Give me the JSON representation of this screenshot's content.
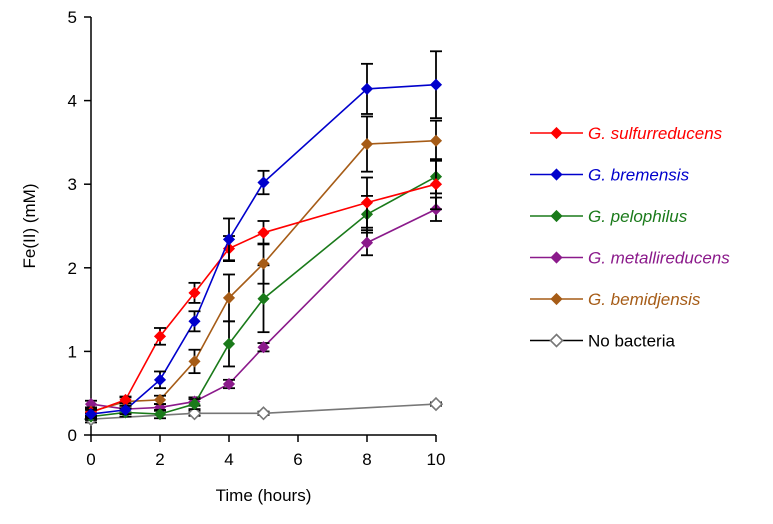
{
  "chart_data": {
    "type": "line",
    "title": "",
    "xlabel": "Time (hours)",
    "ylabel": "Fe(II) (mM)",
    "xlim": [
      0,
      10
    ],
    "ylim": [
      0,
      5
    ],
    "xticks": [
      "0",
      "2",
      "4",
      "6",
      "8",
      "10"
    ],
    "yticks": [
      "0",
      "1",
      "2",
      "3",
      "4",
      "5"
    ],
    "grid": false,
    "legend_position": "right",
    "series": [
      {
        "name": "G. sulfurreducens",
        "color": "#ff0000",
        "marker": "diamond-filled",
        "x": [
          0,
          1,
          2,
          3,
          4,
          5,
          8,
          10
        ],
        "y": [
          0.27,
          0.42,
          1.18,
          1.7,
          2.23,
          2.42,
          2.78,
          3.0
        ],
        "err": [
          0.05,
          0.04,
          0.1,
          0.12,
          0.15,
          0.14,
          0.3,
          0.3
        ]
      },
      {
        "name": "G. bremensis",
        "color": "#0000cc",
        "marker": "diamond-filled",
        "x": [
          0,
          1,
          2,
          3,
          4,
          5,
          8,
          10
        ],
        "y": [
          0.25,
          0.3,
          0.66,
          1.36,
          2.34,
          3.02,
          4.14,
          4.19
        ],
        "err": [
          0.05,
          0.05,
          0.1,
          0.12,
          0.25,
          0.14,
          0.3,
          0.4
        ]
      },
      {
        "name": "G. pelophilus",
        "color": "#1a7a1a",
        "marker": "diamond-filled",
        "x": [
          0,
          1,
          2,
          3,
          4,
          5,
          8,
          10
        ],
        "y": [
          0.22,
          0.27,
          0.25,
          0.37,
          1.09,
          1.63,
          2.64,
          3.09
        ],
        "err": [
          0.04,
          0.05,
          0.05,
          0.06,
          0.27,
          0.4,
          0.22,
          0.2
        ]
      },
      {
        "name": "G. metallireducens",
        "color": "#8b1a8b",
        "marker": "diamond-filled",
        "x": [
          0,
          1,
          2,
          3,
          4,
          5,
          8,
          10
        ],
        "y": [
          0.37,
          0.31,
          0.33,
          0.4,
          0.61,
          1.05,
          2.3,
          2.7
        ],
        "err": [
          0.04,
          0.04,
          0.04,
          0.05,
          0.05,
          0.05,
          0.15,
          0.14
        ]
      },
      {
        "name": "G. bemidjensis",
        "color": "#a65c17",
        "marker": "diamond-filled",
        "x": [
          0,
          1,
          2,
          3,
          4,
          5,
          8,
          10
        ],
        "y": [
          0.28,
          0.4,
          0.42,
          0.88,
          1.64,
          2.05,
          3.48,
          3.52
        ],
        "err": [
          0.05,
          0.05,
          0.05,
          0.14,
          0.28,
          0.24,
          0.33,
          0.24
        ]
      },
      {
        "name": "No bacteria",
        "color": "#777777",
        "marker": "diamond-open",
        "x": [
          0,
          3,
          5,
          10
        ],
        "y": [
          0.19,
          0.26,
          0.26,
          0.37
        ],
        "err": [
          0.04,
          0.03,
          0.02,
          0.02
        ]
      }
    ]
  }
}
